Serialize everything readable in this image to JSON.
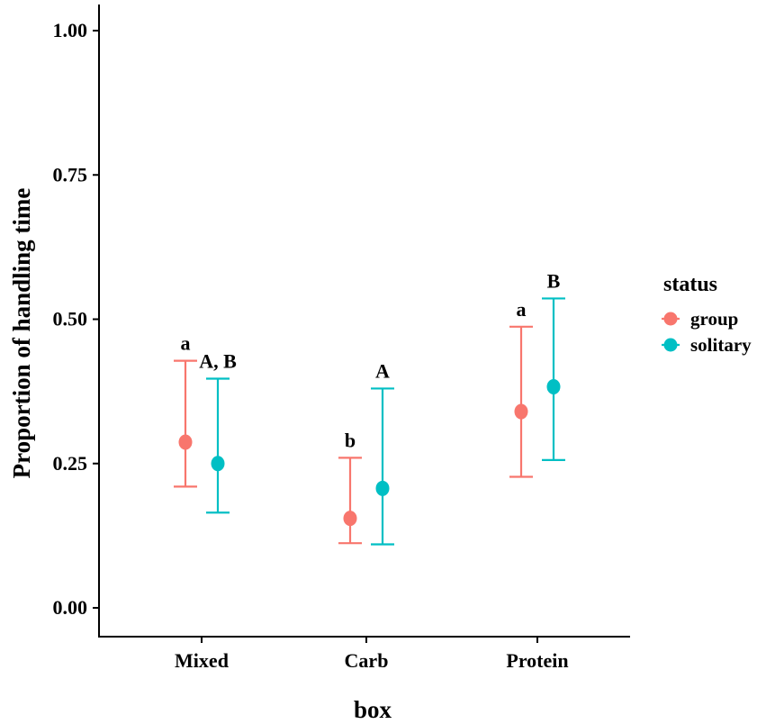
{
  "chart_data": {
    "type": "scatter",
    "title": "",
    "xlabel": "box",
    "ylabel": "Proportion of handling time",
    "categories": [
      "Mixed",
      "Carb",
      "Protein"
    ],
    "ylim": [
      0,
      1
    ],
    "yticks": [
      0.0,
      0.25,
      0.5,
      0.75,
      1.0
    ],
    "ytick_labels": [
      "0.00",
      "0.25",
      "0.50",
      "0.75",
      "1.00"
    ],
    "legend": {
      "title": "status",
      "placement": "right",
      "entries": [
        "group",
        "solitary"
      ]
    },
    "series": [
      {
        "name": "group",
        "color": "#F8766D",
        "values": [
          0.287,
          0.155,
          0.34
        ],
        "lower": [
          0.21,
          0.112,
          0.227
        ],
        "upper": [
          0.428,
          0.26,
          0.487
        ],
        "labels": [
          "a",
          "b",
          "a"
        ]
      },
      {
        "name": "solitary",
        "color": "#00BFC4",
        "values": [
          0.25,
          0.207,
          0.383
        ],
        "lower": [
          0.165,
          0.11,
          0.256
        ],
        "upper": [
          0.397,
          0.38,
          0.536
        ],
        "labels": [
          "A, B",
          "A",
          "B"
        ]
      }
    ]
  }
}
